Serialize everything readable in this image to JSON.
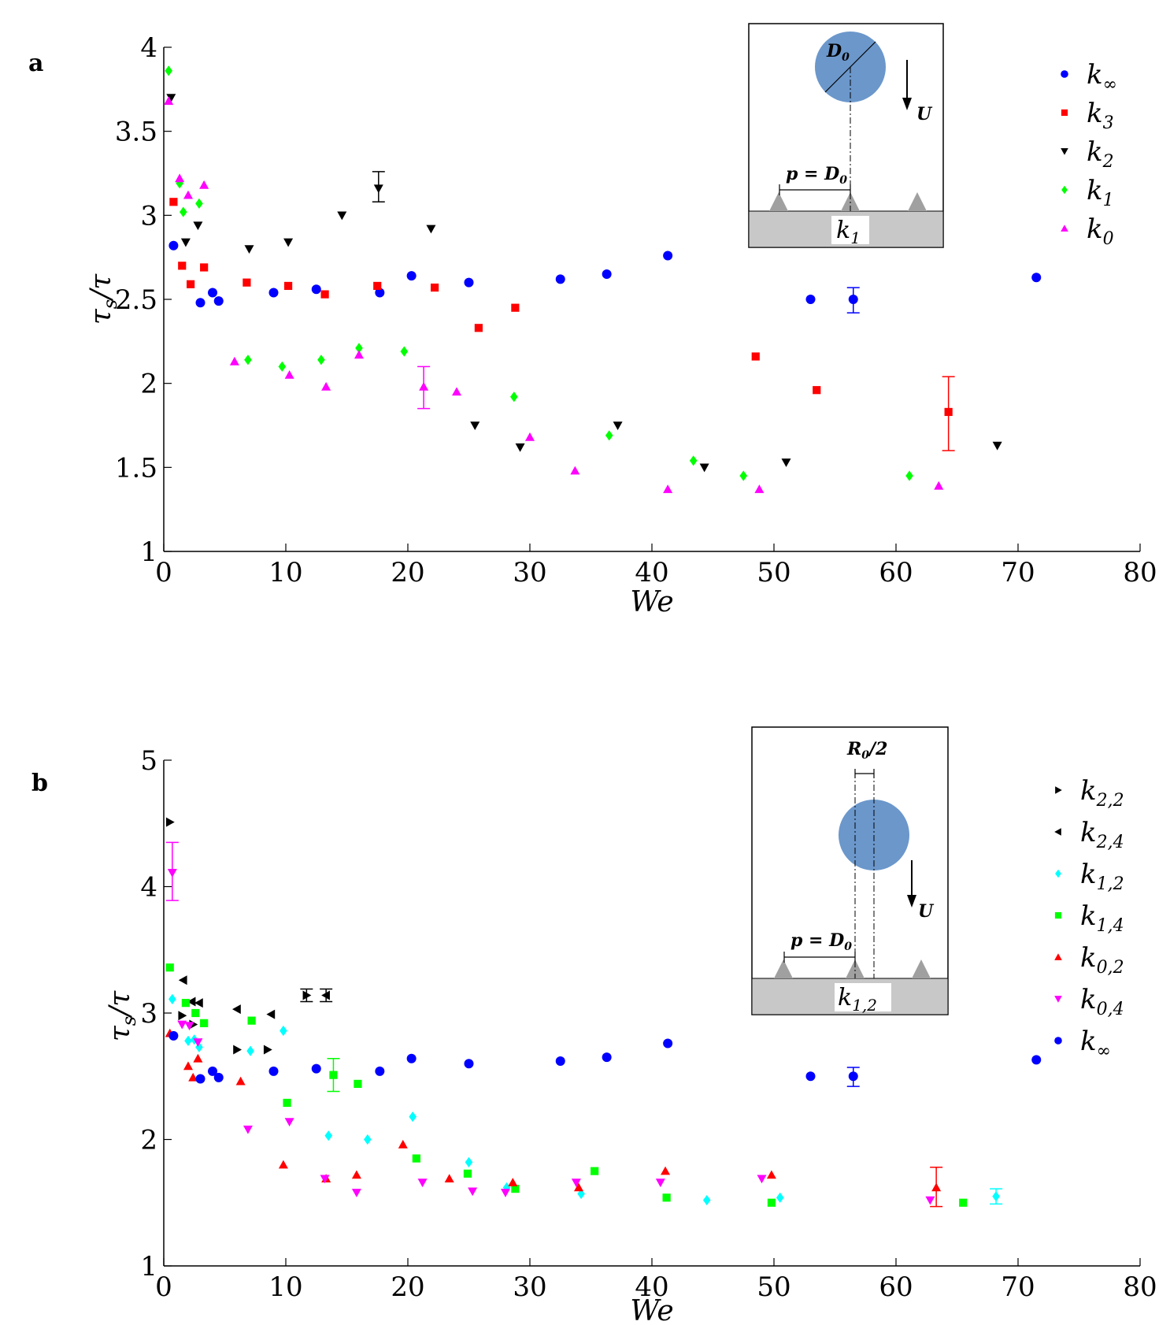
{
  "chart_data": [
    {
      "type": "scatter",
      "panel": "a",
      "xlabel": "We",
      "ylabel": "τs/τ",
      "xlim": [
        0,
        80
      ],
      "ylim": [
        1,
        4
      ],
      "xticks": [
        "0",
        "10",
        "20",
        "30",
        "40",
        "50",
        "60",
        "70",
        "80"
      ],
      "yticks": [
        "1",
        "1.5",
        "2",
        "2.5",
        "3",
        "3.5",
        "4"
      ],
      "legend_position": "top-right",
      "series": [
        {
          "name": "k∞",
          "key": "k_inf",
          "label_main": "k",
          "label_sub": "∞",
          "marker": "circle",
          "color": "#0000ff",
          "points": [
            [
              0.8,
              2.82
            ],
            [
              3,
              2.48
            ],
            [
              4,
              2.54
            ],
            [
              4.5,
              2.49
            ],
            [
              9,
              2.54
            ],
            [
              12.5,
              2.56
            ],
            [
              17.7,
              2.54
            ],
            [
              20.3,
              2.64
            ],
            [
              25,
              2.6
            ],
            [
              32.5,
              2.62
            ],
            [
              36.3,
              2.65
            ],
            [
              41.3,
              2.76
            ],
            [
              53,
              2.5
            ],
            [
              56.5,
              2.5
            ],
            [
              71.5,
              2.63
            ]
          ],
          "errorbars": [
            {
              "x": 56.5,
              "y": 2.5,
              "lo": 2.42,
              "hi": 2.57
            }
          ]
        },
        {
          "name": "k3",
          "key": "k3",
          "label_main": "k",
          "label_sub": "3",
          "marker": "square",
          "color": "#ff0000",
          "points": [
            [
              0.8,
              3.08
            ],
            [
              1.5,
              2.7
            ],
            [
              2.2,
              2.59
            ],
            [
              3.3,
              2.69
            ],
            [
              6.8,
              2.6
            ],
            [
              10.2,
              2.58
            ],
            [
              13.2,
              2.53
            ],
            [
              17.5,
              2.58
            ],
            [
              22.2,
              2.57
            ],
            [
              25.8,
              2.33
            ],
            [
              28.8,
              2.45
            ],
            [
              48.5,
              2.16
            ],
            [
              53.5,
              1.96
            ],
            [
              64.3,
              1.83
            ]
          ],
          "errorbars": [
            {
              "x": 64.3,
              "y": 1.83,
              "lo": 1.6,
              "hi": 2.04
            }
          ]
        },
        {
          "name": "k2",
          "key": "k2",
          "label_main": "k",
          "label_sub": "2",
          "marker": "triangle-down",
          "color": "#000000",
          "points": [
            [
              0.6,
              3.7
            ],
            [
              1.8,
              2.84
            ],
            [
              2.8,
              2.94
            ],
            [
              7,
              2.8
            ],
            [
              10.2,
              2.84
            ],
            [
              14.6,
              3.0
            ],
            [
              17.6,
              3.16
            ],
            [
              21.9,
              2.92
            ],
            [
              25.5,
              1.75
            ],
            [
              29.2,
              1.62
            ],
            [
              37.2,
              1.75
            ],
            [
              44.3,
              1.5
            ],
            [
              51,
              1.53
            ],
            [
              68.3,
              1.63
            ]
          ],
          "errorbars": [
            {
              "x": 17.6,
              "y": 3.16,
              "lo": 3.08,
              "hi": 3.26
            }
          ]
        },
        {
          "name": "k1",
          "key": "k1",
          "label_main": "k",
          "label_sub": "1",
          "marker": "diamond",
          "color": "#00ff00",
          "points": [
            [
              0.4,
              3.86
            ],
            [
              1.3,
              3.19
            ],
            [
              1.6,
              3.02
            ],
            [
              2.9,
              3.07
            ],
            [
              6.9,
              2.14
            ],
            [
              9.7,
              2.1
            ],
            [
              12.9,
              2.14
            ],
            [
              16,
              2.21
            ],
            [
              19.7,
              2.19
            ],
            [
              28.7,
              1.92
            ],
            [
              36.5,
              1.69
            ],
            [
              43.4,
              1.54
            ],
            [
              47.5,
              1.45
            ],
            [
              61.1,
              1.45
            ]
          ],
          "errorbars": []
        },
        {
          "name": "k0",
          "key": "k0",
          "label_main": "k",
          "label_sub": "0",
          "marker": "triangle-up",
          "color": "#ff00ff",
          "points": [
            [
              0.4,
              3.68
            ],
            [
              1.3,
              3.22
            ],
            [
              2,
              3.12
            ],
            [
              3.3,
              3.18
            ],
            [
              5.8,
              2.13
            ],
            [
              10.3,
              2.05
            ],
            [
              13.3,
              1.98
            ],
            [
              16,
              2.17
            ],
            [
              21.3,
              1.98
            ],
            [
              24,
              1.95
            ],
            [
              30,
              1.68
            ],
            [
              33.7,
              1.48
            ],
            [
              41.3,
              1.37
            ],
            [
              48.8,
              1.37
            ],
            [
              63.5,
              1.39
            ]
          ],
          "errorbars": [
            {
              "x": 21.3,
              "y": 1.98,
              "lo": 1.85,
              "hi": 2.1
            }
          ]
        }
      ],
      "inset": {
        "diameter_label": "D0",
        "velocity_label": "U",
        "pitch_label": "p = D0",
        "surface_label": "k1",
        "surface_main": "k",
        "surface_sub": "1"
      }
    },
    {
      "type": "scatter",
      "panel": "b",
      "xlabel": "We",
      "ylabel": "τs/τ",
      "xlim": [
        0,
        80
      ],
      "ylim": [
        1,
        5
      ],
      "xticks": [
        "0",
        "10",
        "20",
        "30",
        "40",
        "50",
        "60",
        "70",
        "80"
      ],
      "yticks": [
        "1",
        "2",
        "3",
        "4",
        "5"
      ],
      "legend_position": "top-right",
      "series": [
        {
          "name": "k2,2",
          "key": "k22",
          "label_main": "k",
          "label_sub": "2,2",
          "marker": "triangle-right",
          "color": "#000000",
          "points": [
            [
              0.5,
              4.51
            ],
            [
              1.5,
              2.98
            ],
            [
              2.4,
              2.91
            ],
            [
              6,
              2.71
            ],
            [
              8.5,
              2.71
            ],
            [
              11.7,
              3.14
            ]
          ],
          "errorbars": [
            {
              "x": 11.7,
              "y": 3.14,
              "lo": 3.09,
              "hi": 3.19
            }
          ]
        },
        {
          "name": "k2,4",
          "key": "k24",
          "label_main": "k",
          "label_sub": "2,4",
          "marker": "triangle-left",
          "color": "#000000",
          "points": [
            [
              1.6,
              3.26
            ],
            [
              2.3,
              3.09
            ],
            [
              2.9,
              3.08
            ],
            [
              6,
              3.03
            ],
            [
              8.8,
              2.99
            ],
            [
              13.3,
              3.14
            ]
          ],
          "errorbars": [
            {
              "x": 13.3,
              "y": 3.14,
              "lo": 3.09,
              "hi": 3.19
            }
          ]
        },
        {
          "name": "k1,2",
          "key": "k12",
          "label_main": "k",
          "label_sub": "1,2",
          "marker": "diamond",
          "color": "#00ffff",
          "points": [
            [
              0.7,
              3.11
            ],
            [
              2,
              2.78
            ],
            [
              2.5,
              2.79
            ],
            [
              2.9,
              2.73
            ],
            [
              7.1,
              2.7
            ],
            [
              9.8,
              2.86
            ],
            [
              13.5,
              2.03
            ],
            [
              16.7,
              2.0
            ],
            [
              20.4,
              2.18
            ],
            [
              25,
              1.82
            ],
            [
              28.1,
              1.62
            ],
            [
              34.2,
              1.57
            ],
            [
              44.5,
              1.52
            ],
            [
              50.5,
              1.54
            ],
            [
              68.2,
              1.55
            ]
          ],
          "errorbars": [
            {
              "x": 68.2,
              "y": 1.55,
              "lo": 1.49,
              "hi": 1.61
            }
          ]
        },
        {
          "name": "k1,4",
          "key": "k14",
          "label_main": "k",
          "label_sub": "1,4",
          "marker": "square",
          "color": "#00ff00",
          "points": [
            [
              0.5,
              3.36
            ],
            [
              1.8,
              3.08
            ],
            [
              2.6,
              3.0
            ],
            [
              3.3,
              2.92
            ],
            [
              7.2,
              2.94
            ],
            [
              10.1,
              2.29
            ],
            [
              13.9,
              2.51
            ],
            [
              15.9,
              2.44
            ],
            [
              20.7,
              1.85
            ],
            [
              24.9,
              1.73
            ],
            [
              28.8,
              1.61
            ],
            [
              35.3,
              1.75
            ],
            [
              41.2,
              1.54
            ],
            [
              49.8,
              1.5
            ],
            [
              65.5,
              1.5
            ]
          ],
          "errorbars": [
            {
              "x": 13.9,
              "y": 2.51,
              "lo": 2.38,
              "hi": 2.64
            }
          ]
        },
        {
          "name": "k0,2",
          "key": "k02",
          "label_main": "k",
          "label_sub": "0,2",
          "marker": "triangle-up",
          "color": "#ff0000",
          "points": [
            [
              0.5,
              2.84
            ],
            [
              2,
              2.58
            ],
            [
              2.4,
              2.49
            ],
            [
              2.8,
              2.64
            ],
            [
              6.3,
              2.46
            ],
            [
              9.8,
              1.8
            ],
            [
              13.3,
              1.69
            ],
            [
              15.8,
              1.72
            ],
            [
              19.6,
              1.96
            ],
            [
              23.4,
              1.69
            ],
            [
              28.6,
              1.66
            ],
            [
              34,
              1.62
            ],
            [
              41.1,
              1.75
            ],
            [
              49.8,
              1.72
            ],
            [
              63.3,
              1.62
            ]
          ],
          "errorbars": [
            {
              "x": 63.3,
              "y": 1.62,
              "lo": 1.47,
              "hi": 1.78
            }
          ]
        },
        {
          "name": "k0,4",
          "key": "k04",
          "label_main": "k",
          "label_sub": "0,4",
          "marker": "triangle-down",
          "color": "#ff00ff",
          "points": [
            [
              0.7,
              4.11
            ],
            [
              1.5,
              2.91
            ],
            [
              2.1,
              2.9
            ],
            [
              2.8,
              2.77
            ],
            [
              6.9,
              2.08
            ],
            [
              10.3,
              2.14
            ],
            [
              13.2,
              1.69
            ],
            [
              15.8,
              1.58
            ],
            [
              21.2,
              1.66
            ],
            [
              25.3,
              1.59
            ],
            [
              28,
              1.58
            ],
            [
              33.8,
              1.66
            ],
            [
              40.7,
              1.66
            ],
            [
              49,
              1.69
            ],
            [
              62.8,
              1.52
            ]
          ],
          "errorbars": [
            {
              "x": 0.7,
              "y": 4.11,
              "lo": 3.89,
              "hi": 4.35
            }
          ]
        },
        {
          "name": "k∞",
          "key": "k_inf",
          "label_main": "k",
          "label_sub": "∞",
          "marker": "circle",
          "color": "#0000ff",
          "points": [
            [
              0.8,
              2.82
            ],
            [
              3,
              2.48
            ],
            [
              4,
              2.54
            ],
            [
              4.5,
              2.49
            ],
            [
              9,
              2.54
            ],
            [
              12.5,
              2.56
            ],
            [
              17.7,
              2.54
            ],
            [
              20.3,
              2.64
            ],
            [
              25,
              2.6
            ],
            [
              32.5,
              2.62
            ],
            [
              36.3,
              2.65
            ],
            [
              41.3,
              2.76
            ],
            [
              53,
              2.5
            ],
            [
              56.5,
              2.5
            ],
            [
              71.5,
              2.63
            ]
          ],
          "errorbars": [
            {
              "x": 56.5,
              "y": 2.5,
              "lo": 2.42,
              "hi": 2.57
            }
          ]
        }
      ],
      "inset": {
        "offset_label": "R0/2",
        "velocity_label": "U",
        "pitch_label": "p = D0",
        "surface_label": "k1,2",
        "surface_main": "k",
        "surface_sub": "1,2"
      }
    }
  ]
}
